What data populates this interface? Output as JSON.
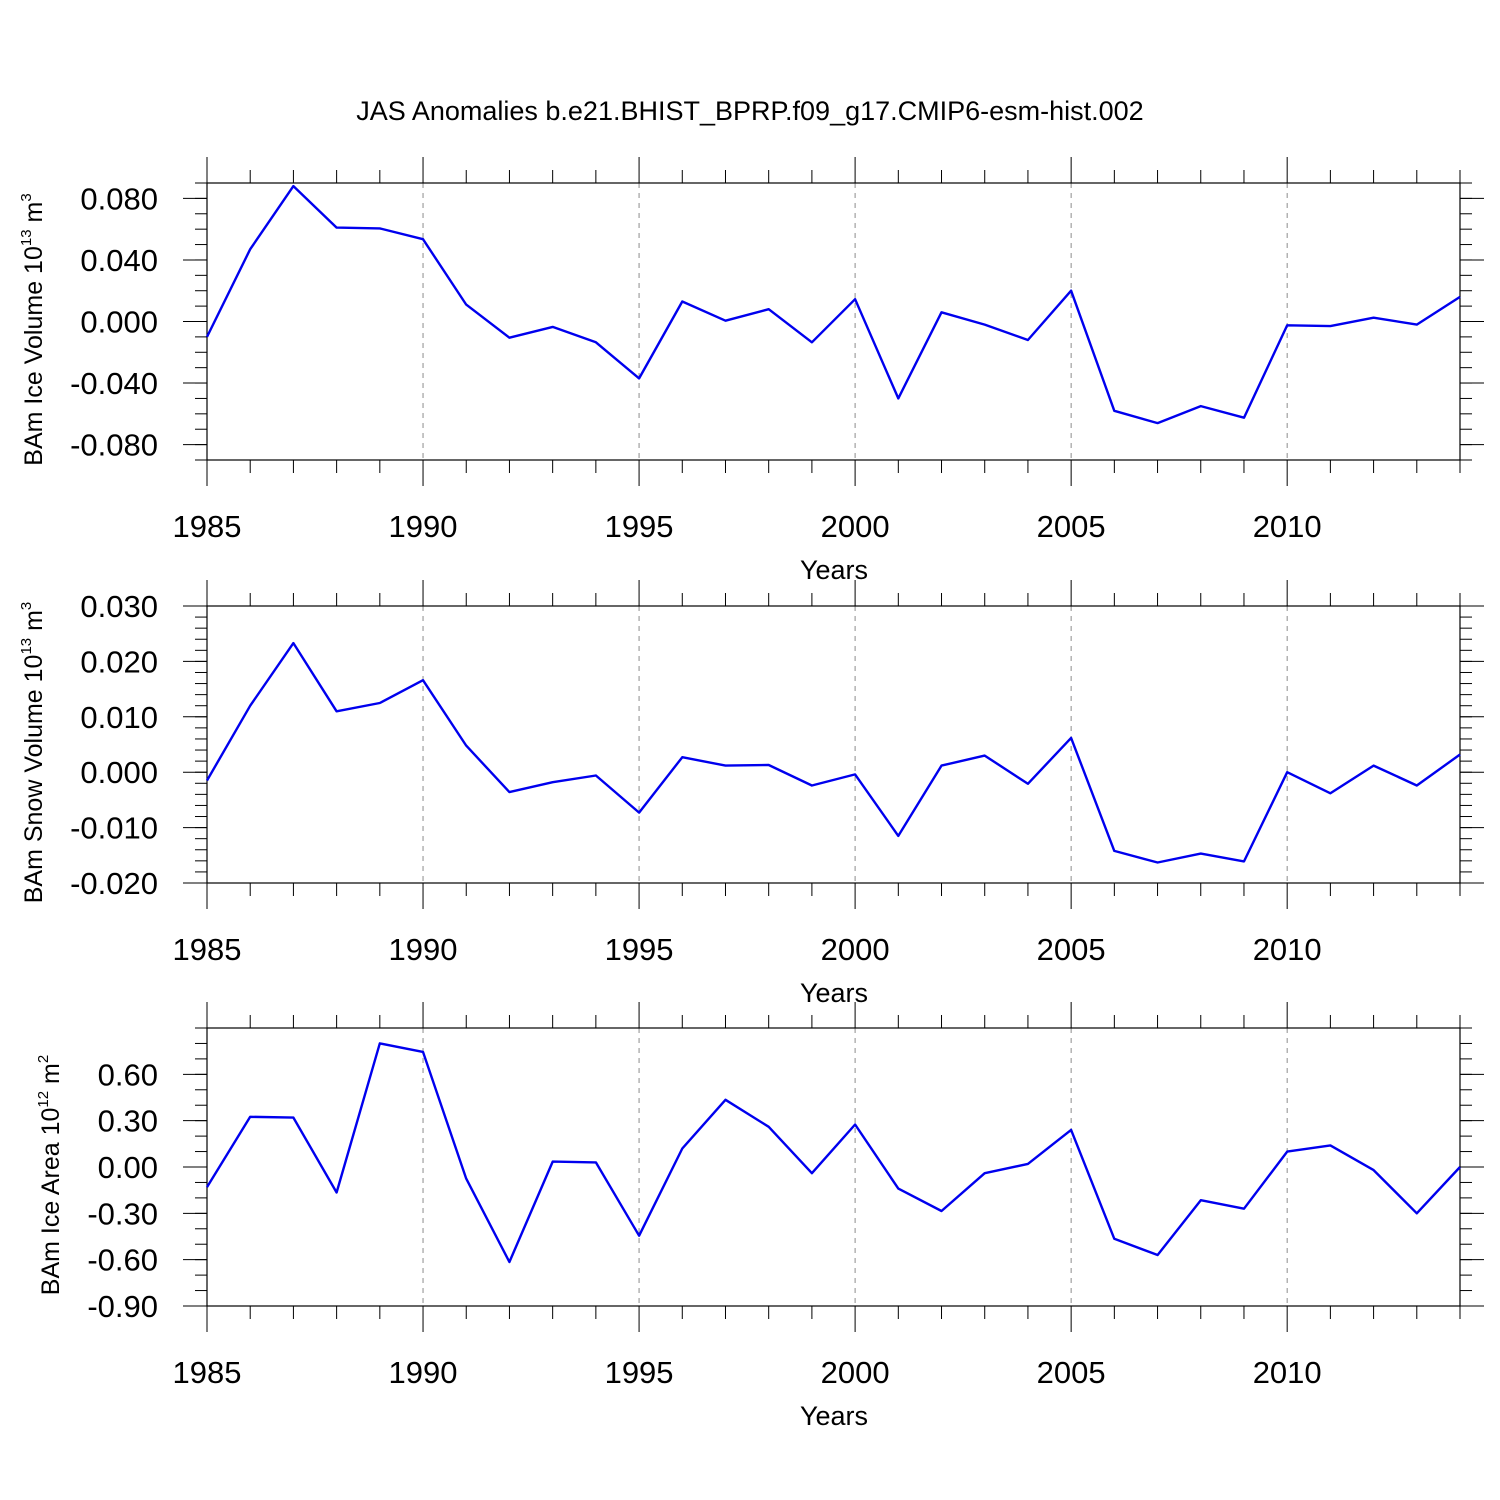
{
  "title": "JAS Anomalies b.e21.BHIST_BPRP.f09_g17.CMIP6-esm-hist.002",
  "colors": {
    "line": "#0000ee",
    "axis": "#000000",
    "grid": "#8c8c8c"
  },
  "chart_data": [
    {
      "type": "line",
      "xlabel": "Years",
      "ylabel": {
        "text": "BAm Ice Volume 10",
        "exp": "13",
        "unit": " m",
        "unit_exp": "3"
      },
      "xlim": [
        1985,
        2014
      ],
      "ylim": [
        -0.09,
        0.09
      ],
      "xticks": [
        1985,
        1990,
        1995,
        2000,
        2005,
        2010
      ],
      "xtick_labels": [
        "1985",
        "1990",
        "1995",
        "2000",
        "2005",
        "2010"
      ],
      "yticks": [
        0.08,
        0.04,
        0.0,
        -0.04,
        -0.08
      ],
      "ytick_labels": [
        "0.080",
        "0.040",
        "0.000",
        "-0.040",
        "-0.080"
      ],
      "minor_y_step": 0.01,
      "vgrid": [
        1990,
        1995,
        2000,
        2005,
        2010
      ],
      "x": [
        1985,
        1986,
        1987,
        1988,
        1989,
        1990,
        1991,
        1992,
        1993,
        1994,
        1995,
        1996,
        1997,
        1998,
        1999,
        2000,
        2001,
        2002,
        2003,
        2004,
        2005,
        2006,
        2007,
        2008,
        2009,
        2010,
        2011,
        2012,
        2013,
        2014
      ],
      "y": [
        -0.01,
        0.047,
        0.088,
        0.061,
        0.0605,
        0.0535,
        0.011,
        -0.0105,
        -0.0035,
        -0.0135,
        -0.037,
        0.013,
        0.0005,
        0.008,
        -0.0135,
        0.0145,
        -0.05,
        0.006,
        -0.002,
        -0.012,
        0.02,
        -0.058,
        -0.066,
        -0.055,
        -0.0625,
        -0.0025,
        -0.003,
        0.0025,
        -0.002,
        0.016
      ]
    },
    {
      "type": "line",
      "xlabel": "Years",
      "ylabel": {
        "text": "BAm Snow Volume 10",
        "exp": "13",
        "unit": " m",
        "unit_exp": "3"
      },
      "xlim": [
        1985,
        2014
      ],
      "ylim": [
        -0.02,
        0.03
      ],
      "xticks": [
        1985,
        1990,
        1995,
        2000,
        2005,
        2010
      ],
      "xtick_labels": [
        "1985",
        "1990",
        "1995",
        "2000",
        "2005",
        "2010"
      ],
      "yticks": [
        0.03,
        0.02,
        0.01,
        0.0,
        -0.01,
        -0.02
      ],
      "ytick_labels": [
        "0.030",
        "0.020",
        "0.010",
        "0.000",
        "-0.010",
        "-0.020"
      ],
      "minor_y_step": 0.002,
      "vgrid": [
        1990,
        1995,
        2000,
        2005,
        2010
      ],
      "x": [
        1985,
        1986,
        1987,
        1988,
        1989,
        1990,
        1991,
        1992,
        1993,
        1994,
        1995,
        1996,
        1997,
        1998,
        1999,
        2000,
        2001,
        2002,
        2003,
        2004,
        2005,
        2006,
        2007,
        2008,
        2009,
        2010,
        2011,
        2012,
        2013,
        2014
      ],
      "y": [
        -0.0015,
        0.012,
        0.0233,
        0.011,
        0.0125,
        0.0166,
        0.0048,
        -0.0036,
        -0.0018,
        -0.0006,
        -0.0073,
        0.0027,
        0.0012,
        0.0013,
        -0.0024,
        -0.0004,
        -0.0115,
        0.0012,
        0.003,
        -0.0021,
        0.0062,
        -0.0142,
        -0.0163,
        -0.0147,
        -0.0161,
        0.0,
        -0.0038,
        0.0012,
        -0.0024,
        0.0032
      ]
    },
    {
      "type": "line",
      "xlabel": "Years",
      "ylabel": {
        "text": "BAm Ice Area 10",
        "exp": "12",
        "unit": " m",
        "unit_exp": "2"
      },
      "xlim": [
        1985,
        2014
      ],
      "ylim": [
        -0.9,
        0.9
      ],
      "xticks": [
        1985,
        1990,
        1995,
        2000,
        2005,
        2010
      ],
      "xtick_labels": [
        "1985",
        "1990",
        "1995",
        "2000",
        "2005",
        "2010"
      ],
      "yticks": [
        0.6,
        0.3,
        0.0,
        -0.3,
        -0.6,
        -0.9
      ],
      "ytick_labels": [
        "0.60",
        "0.30",
        "0.00",
        "-0.30",
        "-0.60",
        "-0.90"
      ],
      "minor_y_step": 0.1,
      "vgrid": [
        1990,
        1995,
        2000,
        2005,
        2010
      ],
      "x": [
        1985,
        1986,
        1987,
        1988,
        1989,
        1990,
        1991,
        1992,
        1993,
        1994,
        1995,
        1996,
        1997,
        1998,
        1999,
        2000,
        2001,
        2002,
        2003,
        2004,
        2005,
        2006,
        2007,
        2008,
        2009,
        2010,
        2011,
        2012,
        2013,
        2014
      ],
      "y": [
        -0.13,
        0.325,
        0.32,
        -0.165,
        0.8,
        0.745,
        -0.075,
        -0.615,
        0.035,
        0.03,
        -0.445,
        0.12,
        0.435,
        0.26,
        -0.04,
        0.275,
        -0.14,
        -0.285,
        -0.04,
        0.02,
        0.24,
        -0.465,
        -0.57,
        -0.215,
        -0.27,
        0.1,
        0.14,
        -0.02,
        -0.3,
        0.0
      ]
    }
  ]
}
